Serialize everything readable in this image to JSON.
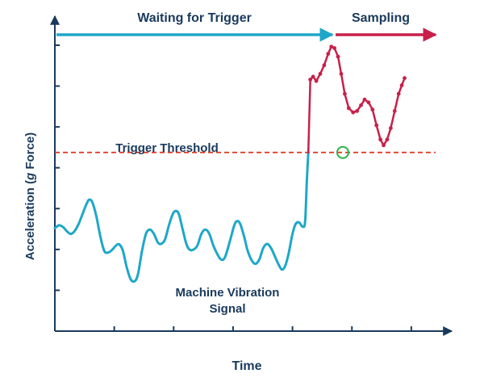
{
  "chart_data": {
    "type": "line",
    "title": "",
    "xlabel": "Time",
    "ylabel": "Acceleration (g Force)",
    "ylabel_parts": [
      "Acceleration (",
      "g",
      " Force)"
    ],
    "xlim": [
      0,
      100
    ],
    "ylim": [
      0,
      100
    ],
    "grid": false,
    "phase_labels": {
      "waiting": "Waiting for Trigger",
      "sampling": "Sampling"
    },
    "threshold": {
      "label": "Trigger Threshold",
      "value": 62.5
    },
    "signal_label": [
      "Machine Vibration",
      "Signal"
    ],
    "trigger_point": {
      "x": 72.7,
      "y": 62.5
    },
    "colors": {
      "axis": "#1a3a5c",
      "waiting": "#1ea7c9",
      "sampling": "#c8204a",
      "threshold": "#e0321c",
      "trigger": "#2bb24c",
      "text": "#1a3a5c"
    },
    "series": [
      {
        "values": [
          [
            0,
            36
          ],
          [
            1,
            37
          ],
          [
            2,
            36.5
          ],
          [
            3,
            35
          ],
          [
            4,
            34
          ],
          [
            5,
            35
          ],
          [
            6,
            37.5
          ],
          [
            7,
            41
          ],
          [
            8,
            44.5
          ],
          [
            8.7,
            46
          ],
          [
            9.5,
            45
          ],
          [
            10.5,
            40
          ],
          [
            11.5,
            33
          ],
          [
            12.5,
            28
          ],
          [
            13.5,
            27.5
          ],
          [
            14.5,
            28.5
          ],
          [
            15.5,
            30
          ],
          [
            16.3,
            30.3
          ],
          [
            17.2,
            28
          ],
          [
            18.2,
            22
          ],
          [
            19.2,
            18
          ],
          [
            20.2,
            17.5
          ],
          [
            21,
            20
          ],
          [
            22,
            28
          ],
          [
            23,
            34
          ],
          [
            24,
            35.5
          ],
          [
            25,
            34
          ],
          [
            26,
            31
          ],
          [
            26.8,
            30.5
          ],
          [
            27.8,
            32
          ],
          [
            28.8,
            37
          ],
          [
            29.8,
            41
          ],
          [
            30.5,
            42
          ],
          [
            31.3,
            41
          ],
          [
            32.2,
            36
          ],
          [
            33.2,
            30.5
          ],
          [
            34,
            28.5
          ],
          [
            35,
            28.5
          ],
          [
            36,
            30
          ],
          [
            37,
            34
          ],
          [
            38,
            35.5
          ],
          [
            39,
            34
          ],
          [
            40,
            30
          ],
          [
            41,
            27
          ],
          [
            42,
            25
          ],
          [
            43,
            26
          ],
          [
            44.3,
            32
          ],
          [
            45.3,
            37
          ],
          [
            46,
            38.5
          ],
          [
            46.8,
            37.5
          ],
          [
            47.8,
            33
          ],
          [
            48.6,
            28.5
          ],
          [
            49.6,
            25
          ],
          [
            50.6,
            23.5
          ],
          [
            51.6,
            25
          ],
          [
            52.6,
            29
          ],
          [
            53.6,
            30.5
          ],
          [
            54.6,
            29
          ],
          [
            55.6,
            26
          ],
          [
            56.6,
            23
          ],
          [
            57.4,
            21.5
          ],
          [
            58.2,
            23
          ],
          [
            59,
            27
          ],
          [
            60,
            34
          ],
          [
            60.8,
            37.5
          ],
          [
            61.7,
            38
          ],
          [
            62.6,
            36.5
          ],
          [
            63.2,
            38.5
          ],
          [
            63.6,
            52
          ],
          [
            64,
            62.5
          ]
        ]
      },
      {
        "values": [
          [
            64,
            62.5
          ],
          [
            64.5,
            88
          ],
          [
            65.2,
            89
          ],
          [
            66,
            87.5
          ],
          [
            67,
            90
          ],
          [
            68,
            93
          ],
          [
            69,
            97
          ],
          [
            69.8,
            99.5
          ],
          [
            70.6,
            99
          ],
          [
            71.5,
            96
          ],
          [
            72.3,
            90
          ],
          [
            73.2,
            83
          ],
          [
            74.2,
            78
          ],
          [
            75.3,
            76.5
          ],
          [
            76.3,
            77
          ],
          [
            77.3,
            79
          ],
          [
            78.2,
            81
          ],
          [
            79.2,
            80
          ],
          [
            80.2,
            77.5
          ],
          [
            81.2,
            72
          ],
          [
            82.2,
            67
          ],
          [
            83,
            65
          ],
          [
            83.9,
            67
          ],
          [
            84.8,
            71
          ],
          [
            85.8,
            77
          ],
          [
            86.8,
            83
          ],
          [
            87.6,
            86
          ],
          [
            88.3,
            88.5
          ]
        ]
      }
    ]
  }
}
